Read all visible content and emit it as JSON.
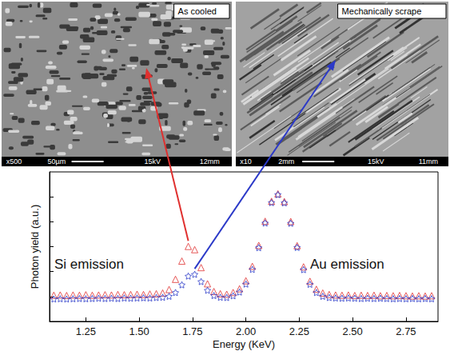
{
  "panels": [
    {
      "label": "As cooled",
      "info": [
        "x500",
        "50µm",
        "15kV",
        "12mm"
      ]
    },
    {
      "label": "Mechanically scrape",
      "info": [
        "x10",
        "2mm",
        "15kV",
        "11mm"
      ]
    }
  ],
  "chart_data": {
    "type": "scatter",
    "xlabel": "Energy (KeV)",
    "ylabel": "Photon yield (a.u.)",
    "annotations": [
      "Si emission",
      "Au emission"
    ],
    "x": [
      1.1,
      1.13,
      1.16,
      1.19,
      1.22,
      1.25,
      1.28,
      1.31,
      1.34,
      1.37,
      1.4,
      1.43,
      1.46,
      1.49,
      1.52,
      1.55,
      1.58,
      1.61,
      1.64,
      1.67,
      1.7,
      1.73,
      1.76,
      1.79,
      1.82,
      1.85,
      1.88,
      1.91,
      1.94,
      1.97,
      2.0,
      2.03,
      2.06,
      2.09,
      2.12,
      2.15,
      2.18,
      2.21,
      2.24,
      2.27,
      2.3,
      2.33,
      2.36,
      2.39,
      2.42,
      2.45,
      2.48,
      2.51,
      2.54,
      2.57,
      2.6,
      2.63,
      2.66,
      2.69,
      2.72,
      2.75,
      2.78,
      2.81,
      2.84,
      2.87
    ],
    "series": [
      {
        "color": "#e0302f",
        "marker": "triangle",
        "values": [
          1.05,
          1.06,
          1.04,
          1.06,
          1.05,
          1.07,
          1.05,
          1.06,
          1.07,
          1.06,
          1.08,
          1.07,
          1.08,
          1.09,
          1.08,
          1.1,
          1.11,
          1.14,
          1.28,
          1.69,
          2.42,
          3.01,
          2.88,
          2.16,
          1.51,
          1.2,
          1.11,
          1.09,
          1.16,
          1.31,
          1.63,
          2.21,
          3.05,
          4.02,
          4.82,
          5.12,
          4.81,
          4.01,
          3.04,
          2.19,
          1.61,
          1.29,
          1.14,
          1.08,
          1.06,
          1.05,
          1.06,
          1.04,
          1.05,
          1.04,
          1.05,
          1.03,
          1.04,
          1.03,
          1.04,
          1.03,
          1.02,
          1.03,
          1.02,
          1.03
        ]
      },
      {
        "color": "#2b39c8",
        "marker": "star",
        "values": [
          0.9,
          0.91,
          0.9,
          0.91,
          0.92,
          0.91,
          0.92,
          0.93,
          0.92,
          0.93,
          0.92,
          0.94,
          0.93,
          0.94,
          0.95,
          0.94,
          0.96,
          0.97,
          1.01,
          1.16,
          1.47,
          1.82,
          1.89,
          1.6,
          1.25,
          1.04,
          0.97,
          0.96,
          1.03,
          1.18,
          1.5,
          2.09,
          2.96,
          3.95,
          4.77,
          5.09,
          4.76,
          3.94,
          2.97,
          2.08,
          1.49,
          1.16,
          1.01,
          0.96,
          0.94,
          0.93,
          0.94,
          0.93,
          0.92,
          0.93,
          0.92,
          0.93,
          0.92,
          0.91,
          0.92,
          0.91,
          0.92,
          0.91,
          0.92,
          0.91
        ]
      }
    ],
    "xlim": [
      1.08,
      2.9
    ],
    "xticks": [
      1.25,
      {
        "value": 1.5,
        "label": "1.50"
      },
      1.75,
      {
        "value": 2,
        "label": "2.00"
      },
      2.25,
      {
        "value": 2.5,
        "label": "2.50"
      },
      2.75
    ],
    "ylim": [
      0,
      6
    ],
    "yticks": [
      1,
      2,
      3,
      4,
      5
    ],
    "tick_labels": "x",
    "grid": false
  }
}
